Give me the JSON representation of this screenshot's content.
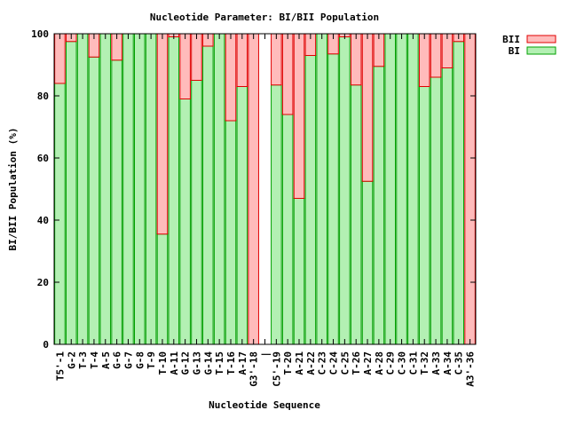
{
  "chart_data": {
    "type": "bar",
    "stacked": true,
    "title": "Nucleotide Parameter: BI/BII Population",
    "xlabel": "Nucleotide Sequence",
    "ylabel": "BI/BII Population (%)",
    "ylim": [
      0,
      100
    ],
    "yticks": [
      0,
      20,
      40,
      60,
      80,
      100
    ],
    "legend_position": "top-right, outside plot",
    "categories": [
      "T5'-1",
      "G-2",
      "T-3",
      "T-4",
      "A-5",
      "G-6",
      "G-7",
      "G-8",
      "T-9",
      "T-10",
      "A-11",
      "G-12",
      "G-13",
      "G-14",
      "T-15",
      "T-16",
      "A-17",
      "G3'-18",
      "|",
      "C5'-19",
      "T-20",
      "A-21",
      "A-22",
      "C-23",
      "C-24",
      "C-25",
      "T-26",
      "A-27",
      "A-28",
      "C-29",
      "C-30",
      "C-31",
      "T-32",
      "A-33",
      "A-34",
      "C-35",
      "A3'-36"
    ],
    "series": [
      {
        "name": "BI",
        "color_fill": "#b3f0b3",
        "color_edge": "#00a000",
        "values": [
          84,
          97.5,
          100,
          92.5,
          100,
          91.5,
          100,
          100,
          100,
          35.5,
          99,
          79,
          85,
          96,
          100,
          72,
          83,
          0,
          0,
          83.5,
          74,
          47,
          93,
          100,
          93.5,
          99,
          83.5,
          52.5,
          89.5,
          100,
          100,
          100,
          83,
          86,
          89,
          97.5,
          0
        ]
      },
      {
        "name": "BII",
        "color_fill": "#ffbbbb",
        "color_edge": "#e00000",
        "values": [
          16,
          2.5,
          0,
          7.5,
          0,
          8.5,
          0,
          0,
          0,
          64.5,
          1,
          21,
          15,
          4,
          0,
          28,
          17,
          100,
          0,
          16.5,
          26,
          53,
          7,
          0,
          6.5,
          1,
          16.5,
          47.5,
          10.5,
          0,
          0,
          0,
          17,
          14,
          11,
          2.5,
          100
        ]
      }
    ]
  }
}
